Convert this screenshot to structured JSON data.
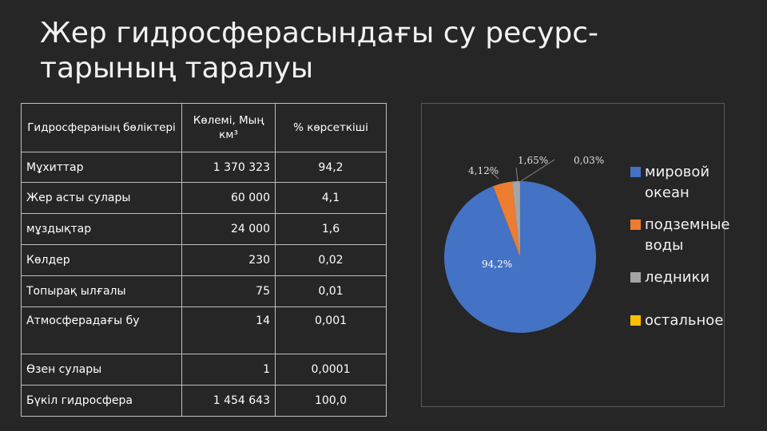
{
  "title": "Жер гидросферасындағы су ресурс-тарының таралуы",
  "table": {
    "headers": [
      "Гидросфераның бөліктері",
      "Көлемі, Мың км³",
      "% көрсеткіші"
    ],
    "rows": [
      [
        "Мұхиттар",
        "1 370 323",
        "94,2"
      ],
      [
        "Жер асты сулары",
        "60 000",
        "4,1"
      ],
      [
        "мұздықтар",
        "24 000",
        "1,6"
      ],
      [
        "Көлдер",
        "230",
        "0,02"
      ],
      [
        "Топырақ ылғалы",
        "75",
        "0,01"
      ],
      [
        "Атмосферадағы бу",
        "14",
        "0,001"
      ],
      [
        "Өзен сулары",
        "1",
        "0,0001"
      ],
      [
        "Бүкіл гидросфера",
        "1 454 643",
        "100,0"
      ]
    ]
  },
  "chart_data": {
    "type": "pie",
    "categories": [
      "мировой океан",
      "подземные воды",
      "ледники",
      "остальное"
    ],
    "values": [
      94.2,
      4.12,
      1.65,
      0.03
    ],
    "labels": [
      "94,2%",
      "4,12%",
      "1,65%",
      "0,03%"
    ],
    "colors": [
      "#4472c4",
      "#ed7d31",
      "#a5a5a5",
      "#ffc000"
    ],
    "legend_position": "right"
  }
}
